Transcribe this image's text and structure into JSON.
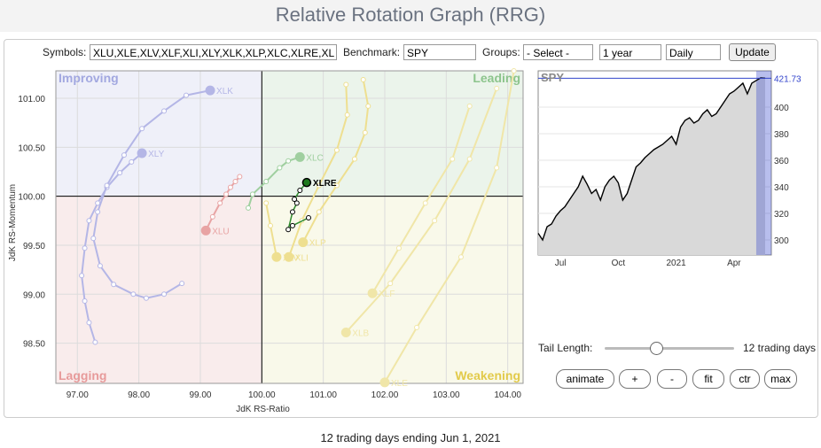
{
  "header": {
    "title": "Relative Rotation Graph (RRG)"
  },
  "controls": {
    "symbols_label": "Symbols:",
    "symbols": "XLU,XLE,XLV,XLF,XLI,XLY,XLK,XLP,XLC,XLRE,XL",
    "benchmark_label": "Benchmark:",
    "benchmark": "SPY",
    "groups_label": "Groups:",
    "groups": "- Select -",
    "period": "1 year",
    "frequency": "Daily",
    "update": "Update"
  },
  "rrg": {
    "type": "rotation",
    "x_label": "JdK RS-Ratio",
    "y_label": "JdK RS-Momentum",
    "xlim": [
      96.65,
      104.25
    ],
    "ylim": [
      98.09,
      101.28
    ],
    "center": [
      100,
      100
    ],
    "xticks": [
      {
        "value": 97,
        "label": "97.00"
      },
      {
        "value": 98,
        "label": "98.00"
      },
      {
        "value": 99,
        "label": "99.00"
      },
      {
        "value": 100,
        "label": "100.00"
      },
      {
        "value": 101,
        "label": "101.00"
      },
      {
        "value": 102,
        "label": "102.00"
      },
      {
        "value": 103,
        "label": "103.00"
      },
      {
        "value": 104,
        "label": "104.00"
      }
    ],
    "yticks": [
      {
        "value": 98.5,
        "label": "98.50"
      },
      {
        "value": 99,
        "label": "99.00"
      },
      {
        "value": 99.5,
        "label": "99.50"
      },
      {
        "value": 100,
        "label": "100.00"
      },
      {
        "value": 100.5,
        "label": "100.50"
      },
      {
        "value": 101,
        "label": "101.00"
      }
    ],
    "quadrants": {
      "improving": "Improving",
      "leading": "Leading",
      "lagging": "Lagging",
      "weakening": "Weakening"
    },
    "series": [
      {
        "name": "XLY",
        "color": "#b4b6e6",
        "x": [
          97.29,
          97.19,
          97.12,
          97.07,
          97.12,
          97.19,
          97.33,
          97.48,
          97.69,
          97.88,
          98.05
        ],
        "y": [
          98.51,
          98.71,
          98.93,
          99.19,
          99.47,
          99.75,
          99.93,
          100.09,
          100.24,
          100.35,
          100.44
        ]
      },
      {
        "name": "XLK",
        "color": "#b4b6e6",
        "x": [
          98.7,
          98.41,
          98.12,
          97.91,
          97.59,
          97.37,
          97.26,
          97.33,
          97.48,
          97.76,
          98.05,
          98.41,
          98.77,
          99.16
        ],
        "y": [
          99.11,
          99.0,
          98.96,
          99.0,
          99.1,
          99.29,
          99.57,
          99.84,
          100.11,
          100.42,
          100.69,
          100.87,
          101.03,
          101.08
        ]
      },
      {
        "name": "XLU",
        "color": "#e8a4a4",
        "x": [
          99.64,
          99.57,
          99.49,
          99.42,
          99.32,
          99.2,
          99.09
        ],
        "y": [
          100.2,
          100.15,
          100.09,
          100.02,
          99.93,
          99.79,
          99.65
        ]
      },
      {
        "name": "XLC",
        "color": "#9fcf9f",
        "x": [
          99.78,
          99.85,
          100.07,
          100.29,
          100.43,
          100.62
        ],
        "y": [
          99.88,
          100.02,
          100.15,
          100.29,
          100.36,
          100.4
        ]
      },
      {
        "name": "XLP",
        "color": "#eedf90",
        "x": [
          101.65,
          101.73,
          101.68,
          101.51,
          101.22,
          100.93,
          100.67
        ],
        "y": [
          101.19,
          100.92,
          100.65,
          100.38,
          100.11,
          99.84,
          99.53
        ]
      },
      {
        "name": "XLI",
        "color": "#eedf90",
        "x": [
          101.37,
          101.39,
          101.22,
          100.93,
          100.65,
          100.44
        ],
        "y": [
          101.14,
          100.83,
          100.47,
          100.11,
          99.75,
          99.38
        ]
      },
      {
        "name": "XLV",
        "color": "#eedf90",
        "x": [
          100.07,
          100.14,
          100.24
        ],
        "y": [
          99.93,
          99.7,
          99.38
        ]
      },
      {
        "name": "XLF",
        "color": "#f0e6a8",
        "x": [
          103.38,
          103.1,
          102.66,
          102.23,
          101.8
        ],
        "y": [
          100.92,
          100.38,
          99.93,
          99.47,
          99.01
        ]
      },
      {
        "name": "XLB",
        "color": "#f0e6a8",
        "x": [
          103.82,
          103.38,
          102.81,
          102.09,
          101.37
        ],
        "y": [
          101.1,
          100.38,
          99.75,
          99.11,
          98.61
        ]
      },
      {
        "name": "XLE",
        "color": "#f0e6a8",
        "x": [
          104.1,
          103.82,
          103.24,
          102.52,
          102.0
        ],
        "y": [
          101.28,
          100.29,
          99.38,
          98.66,
          98.1
        ]
      },
      {
        "name": "XLRE",
        "color": "#2e8b2e",
        "highlight": true,
        "x": [
          100.76,
          100.5,
          100.43,
          100.5,
          100.57,
          100.53,
          100.62,
          100.73
        ],
        "y": [
          99.78,
          99.7,
          99.66,
          99.84,
          99.93,
          99.97,
          100.06,
          100.14
        ]
      }
    ]
  },
  "price_chart": {
    "type": "area",
    "title": "SPY",
    "color": "#000000",
    "highlight_color": "#3344cc",
    "ylim": [
      288.7,
      427.3
    ],
    "yticks": [
      300,
      320,
      340,
      360,
      380,
      400
    ],
    "last_label": {
      "value": 421.73,
      "label": "421.73"
    },
    "categories": [
      null,
      null,
      null,
      null,
      null,
      "Jul",
      null,
      null,
      null,
      null,
      null,
      null,
      null,
      null,
      null,
      null,
      null,
      null,
      "Oct",
      null,
      null,
      null,
      null,
      null,
      null,
      null,
      null,
      null,
      null,
      null,
      null,
      "2021",
      null,
      null,
      null,
      null,
      null,
      null,
      null,
      null,
      null,
      null,
      null,
      null,
      "Apr",
      null,
      null,
      null,
      null,
      null,
      null,
      null
    ],
    "values": [
      305,
      300,
      310,
      312,
      318,
      322,
      325,
      330,
      335,
      340,
      348,
      342,
      335,
      338,
      330,
      340,
      345,
      348,
      343,
      330,
      335,
      345,
      355,
      358,
      362,
      365,
      368,
      370,
      372,
      375,
      378,
      372,
      385,
      390,
      392,
      388,
      390,
      395,
      398,
      393,
      395,
      400,
      405,
      410,
      412,
      415,
      418,
      410,
      418,
      420,
      422,
      421.73
    ]
  },
  "tail": {
    "label": "Tail Length:",
    "value_text": "12 trading days"
  },
  "buttons": [
    "animate",
    "+",
    "-",
    "fit",
    "ctr",
    "max"
  ],
  "footer": "12 trading days ending Jun 1, 2021"
}
